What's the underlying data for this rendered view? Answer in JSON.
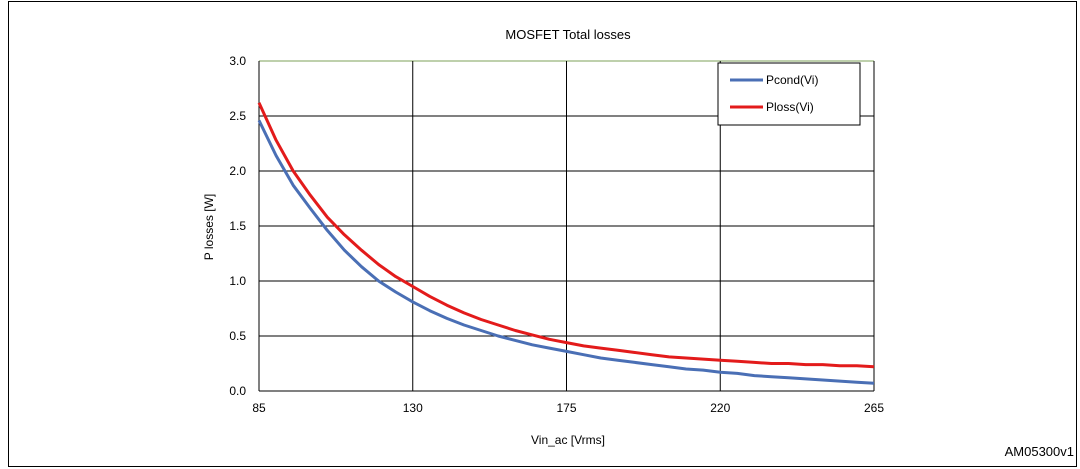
{
  "figure_id": "AM05300v1",
  "colors": {
    "pcond": "#4a6fb5",
    "ploss": "#e31b1b",
    "plot_top_border": "#7ea05a",
    "grid": "#000000"
  },
  "chart_data": {
    "type": "line",
    "title": "MOSFET Total losses",
    "xlabel": "Vin_ac [Vrms]",
    "ylabel": "P losses [W]",
    "xlim": [
      85,
      265
    ],
    "ylim": [
      0,
      3.0
    ],
    "xticks": [
      "85",
      "130",
      "175",
      "220",
      "265"
    ],
    "yticks": [
      "0.0",
      "0.5",
      "1.0",
      "1.5",
      "2.0",
      "2.5",
      "3.0"
    ],
    "grid": true,
    "legend_position": "top-right",
    "x": [
      85,
      90,
      95,
      100,
      105,
      110,
      115,
      120,
      125,
      130,
      135,
      140,
      145,
      150,
      155,
      160,
      165,
      170,
      175,
      180,
      185,
      190,
      195,
      200,
      205,
      210,
      215,
      220,
      225,
      230,
      235,
      240,
      245,
      250,
      255,
      260,
      265
    ],
    "series": [
      {
        "name": "Pcond(Vi)",
        "color": "#4a6fb5",
        "values": [
          2.46,
          2.14,
          1.87,
          1.66,
          1.46,
          1.28,
          1.13,
          1.0,
          0.9,
          0.81,
          0.73,
          0.66,
          0.6,
          0.55,
          0.5,
          0.46,
          0.42,
          0.39,
          0.36,
          0.33,
          0.3,
          0.28,
          0.26,
          0.24,
          0.22,
          0.2,
          0.19,
          0.17,
          0.16,
          0.14,
          0.13,
          0.12,
          0.11,
          0.1,
          0.09,
          0.08,
          0.07
        ]
      },
      {
        "name": "Ploss(Vi)",
        "color": "#e31b1b",
        "values": [
          2.62,
          2.28,
          2.0,
          1.78,
          1.58,
          1.42,
          1.28,
          1.15,
          1.04,
          0.95,
          0.86,
          0.78,
          0.71,
          0.65,
          0.6,
          0.55,
          0.51,
          0.47,
          0.44,
          0.41,
          0.39,
          0.37,
          0.35,
          0.33,
          0.31,
          0.3,
          0.29,
          0.28,
          0.27,
          0.26,
          0.25,
          0.25,
          0.24,
          0.24,
          0.23,
          0.23,
          0.22
        ]
      }
    ]
  }
}
